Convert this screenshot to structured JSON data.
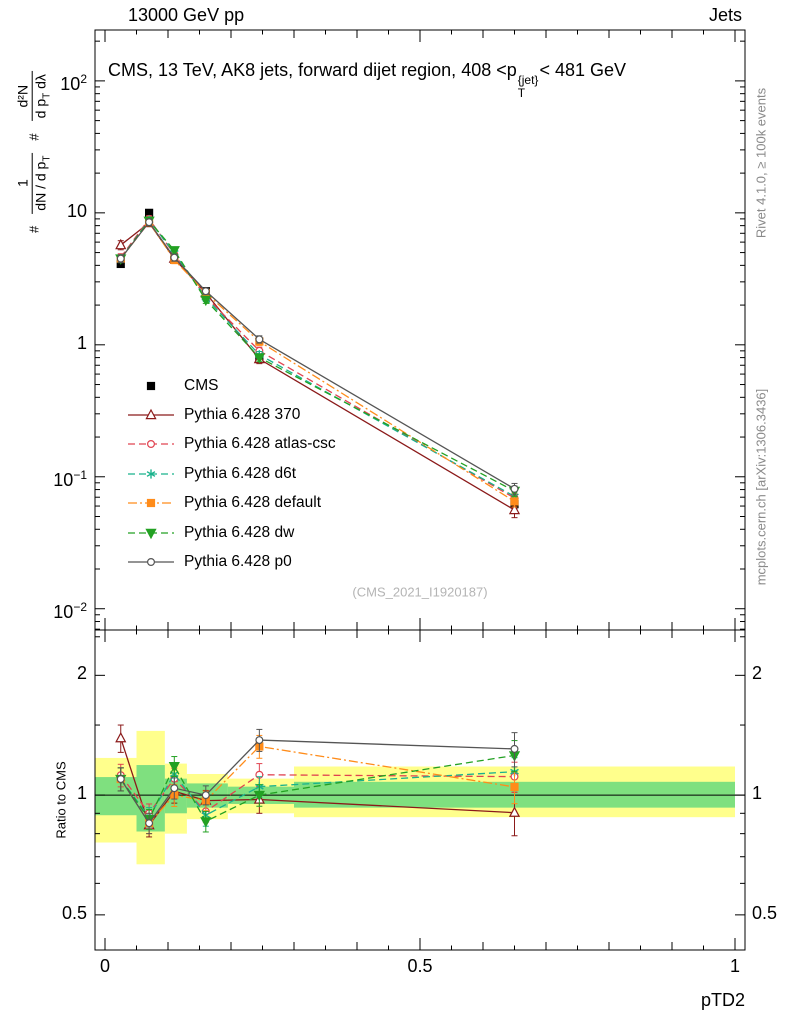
{
  "header": {
    "left": "13000 GeV pp",
    "right": "Jets"
  },
  "title": {
    "pre": "CMS, 13 TeV, AK8 jets, forward dijet region, 408 <p",
    "sup": "{jet}",
    "sub": "T",
    "post": "< 481 GeV"
  },
  "y_axis_label": {
    "hash1": "#",
    "frac1_num": "1",
    "frac1_den_pre": "dN / d p",
    "frac1_den_sub": "T",
    "hash2": "#",
    "frac2_num": "d²N",
    "frac2_den_pre": "d p",
    "frac2_den_sub": "T",
    "frac2_den_post": " dλ"
  },
  "ratio_axis_label": "Ratio to CMS",
  "x_axis_label": "pTD2",
  "side_notes": {
    "top": "Rivet 4.1.0, ≥ 100k events",
    "bottom": "mcplots.cern.ch [arXiv:1306.3436]"
  },
  "watermark": "(CMS_2021_I1920187)",
  "chart_data": {
    "type": "line",
    "title": "CMS, 13 TeV, AK8 jets, forward dijet region, 408 <pT{jet}< 481 GeV",
    "xlabel": "pTD2",
    "ylabel": "# 1/(dN/dpT) # d²N/(dpT dλ)",
    "ratio_label": "Ratio to CMS",
    "y_scale": "log",
    "x": [
      0.025,
      0.07,
      0.11,
      0.16,
      0.245,
      0.65
    ],
    "x_range": [
      -0.016,
      1.016
    ],
    "x_ticks": [
      {
        "v": 0,
        "label": "0"
      },
      {
        "v": 0.5,
        "label": "0.5"
      },
      {
        "v": 1,
        "label": "1"
      }
    ],
    "y_range": [
      0.0069,
      243
    ],
    "y_ticks": [
      {
        "v": 0.01,
        "base": "10",
        "exp": "−2"
      },
      {
        "v": 0.1,
        "base": "10",
        "exp": "−1"
      },
      {
        "v": 1,
        "base": "1",
        "exp": ""
      },
      {
        "v": 10,
        "base": "10",
        "exp": ""
      },
      {
        "v": 100,
        "base": "10",
        "exp": "2"
      }
    ],
    "ratio_range": [
      0.408,
      2.6
    ],
    "ratio_ticks": [
      {
        "v": 0.5,
        "label": "0.5"
      },
      {
        "v": 1,
        "label": "1"
      },
      {
        "v": 2,
        "label": "2"
      }
    ],
    "legend_position": "middle-left",
    "series": [
      {
        "name": "CMS",
        "color": "#000000",
        "marker": "square",
        "filled": true,
        "line": "none",
        "values": [
          4.1,
          10.0,
          4.4,
          2.55,
          0.8,
          0.062
        ],
        "yerr": [
          0.2,
          0.4,
          0.2,
          0.12,
          0.04,
          0.004
        ]
      },
      {
        "name": "Pythia 6.428 370",
        "color": "#8b1a1a",
        "marker": "triangle-up",
        "filled": false,
        "line": "solid",
        "values": [
          5.7,
          8.4,
          4.5,
          2.47,
          0.78,
          0.056
        ],
        "yerr": [
          0.45,
          0.55,
          0.3,
          0.15,
          0.06,
          0.007
        ]
      },
      {
        "name": "Pythia 6.428 atlas-csc",
        "color": "#e04350",
        "marker": "circle",
        "filled": false,
        "line": "dash",
        "values": [
          4.6,
          9.0,
          4.84,
          2.32,
          0.9,
          0.069
        ],
        "yerr": [
          0.3,
          0.5,
          0.3,
          0.14,
          0.06,
          0.006
        ]
      },
      {
        "name": "Pythia 6.428 d6t",
        "color": "#19b28c",
        "marker": "asterisk",
        "filled": false,
        "line": "dash",
        "values": [
          4.5,
          8.8,
          4.97,
          2.27,
          0.84,
          0.071
        ],
        "yerr": [
          0.3,
          0.5,
          0.3,
          0.14,
          0.05,
          0.006
        ]
      },
      {
        "name": "Pythia 6.428 default",
        "color": "#ff8c1a",
        "marker": "square",
        "filled": true,
        "line": "dashdot",
        "values": [
          4.5,
          8.5,
          4.4,
          2.47,
          1.06,
          0.065
        ],
        "yerr": [
          0.3,
          0.5,
          0.28,
          0.14,
          0.07,
          0.006
        ]
      },
      {
        "name": "Pythia 6.428 dw",
        "color": "#23a123",
        "marker": "triangle-down",
        "filled": true,
        "line": "dash",
        "values": [
          4.5,
          8.7,
          5.2,
          2.19,
          0.8,
          0.078
        ],
        "yerr": [
          0.3,
          0.5,
          0.3,
          0.13,
          0.05,
          0.007
        ]
      },
      {
        "name": "Pythia 6.428 p0",
        "color": "#555555",
        "marker": "circle",
        "filled": false,
        "line": "solid",
        "values": [
          4.5,
          8.5,
          4.58,
          2.55,
          1.1,
          0.081
        ],
        "yerr": [
          0.3,
          0.5,
          0.28,
          0.14,
          0.07,
          0.008
        ]
      }
    ],
    "bands": {
      "yellow_color": "#ffff8c",
      "green_color": "#7fe07f",
      "yellow": [
        {
          "x1": -0.016,
          "x2": 0.05,
          "lo": 0.76,
          "hi": 1.24
        },
        {
          "x1": 0.05,
          "x2": 0.095,
          "lo": 0.67,
          "hi": 1.45
        },
        {
          "x1": 0.095,
          "x2": 0.13,
          "lo": 0.8,
          "hi": 1.2
        },
        {
          "x1": 0.13,
          "x2": 0.195,
          "lo": 0.87,
          "hi": 1.13
        },
        {
          "x1": 0.195,
          "x2": 0.3,
          "lo": 0.9,
          "hi": 1.1
        },
        {
          "x1": 0.3,
          "x2": 1.0,
          "lo": 0.88,
          "hi": 1.18
        }
      ],
      "green": [
        {
          "x1": -0.016,
          "x2": 0.05,
          "lo": 0.89,
          "hi": 1.11
        },
        {
          "x1": 0.05,
          "x2": 0.095,
          "lo": 0.81,
          "hi": 1.19
        },
        {
          "x1": 0.095,
          "x2": 0.13,
          "lo": 0.9,
          "hi": 1.1
        },
        {
          "x1": 0.13,
          "x2": 0.195,
          "lo": 0.93,
          "hi": 1.07
        },
        {
          "x1": 0.195,
          "x2": 0.3,
          "lo": 0.95,
          "hi": 1.05
        },
        {
          "x1": 0.3,
          "x2": 1.0,
          "lo": 0.93,
          "hi": 1.08
        }
      ]
    }
  }
}
